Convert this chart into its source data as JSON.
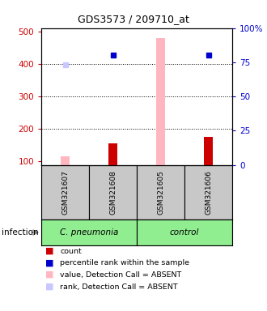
{
  "title": "GDS3573 / 209710_at",
  "samples": [
    "GSM321607",
    "GSM321608",
    "GSM321605",
    "GSM321606"
  ],
  "ylim_left": [
    90,
    510
  ],
  "ylim_right": [
    0,
    100
  ],
  "yticks_left": [
    100,
    200,
    300,
    400,
    500
  ],
  "yticks_right": [
    0,
    25,
    50,
    75,
    100
  ],
  "ytick_labels_right": [
    "0",
    "25",
    "50",
    "75",
    "100%"
  ],
  "red_bars": [
    null,
    155,
    480,
    175
  ],
  "red_bar_absent": [
    true,
    false,
    true,
    false
  ],
  "blue_squares_rank": [
    null,
    80,
    null,
    80
  ],
  "blue_square_absent": [
    false,
    false,
    false,
    false
  ],
  "light_red_bar_val": [
    115,
    null,
    null,
    null
  ],
  "light_blue_rank_val": [
    73,
    null,
    null,
    null
  ],
  "left_tick_color": "#cc0000",
  "right_tick_color": "#0000cc",
  "legend_items": [
    {
      "color": "#cc0000",
      "label": "count"
    },
    {
      "color": "#0000cc",
      "label": "percentile rank within the sample"
    },
    {
      "color": "#ffb6c1",
      "label": "value, Detection Call = ABSENT"
    },
    {
      "color": "#c8c8ff",
      "label": "rank, Detection Call = ABSENT"
    }
  ]
}
